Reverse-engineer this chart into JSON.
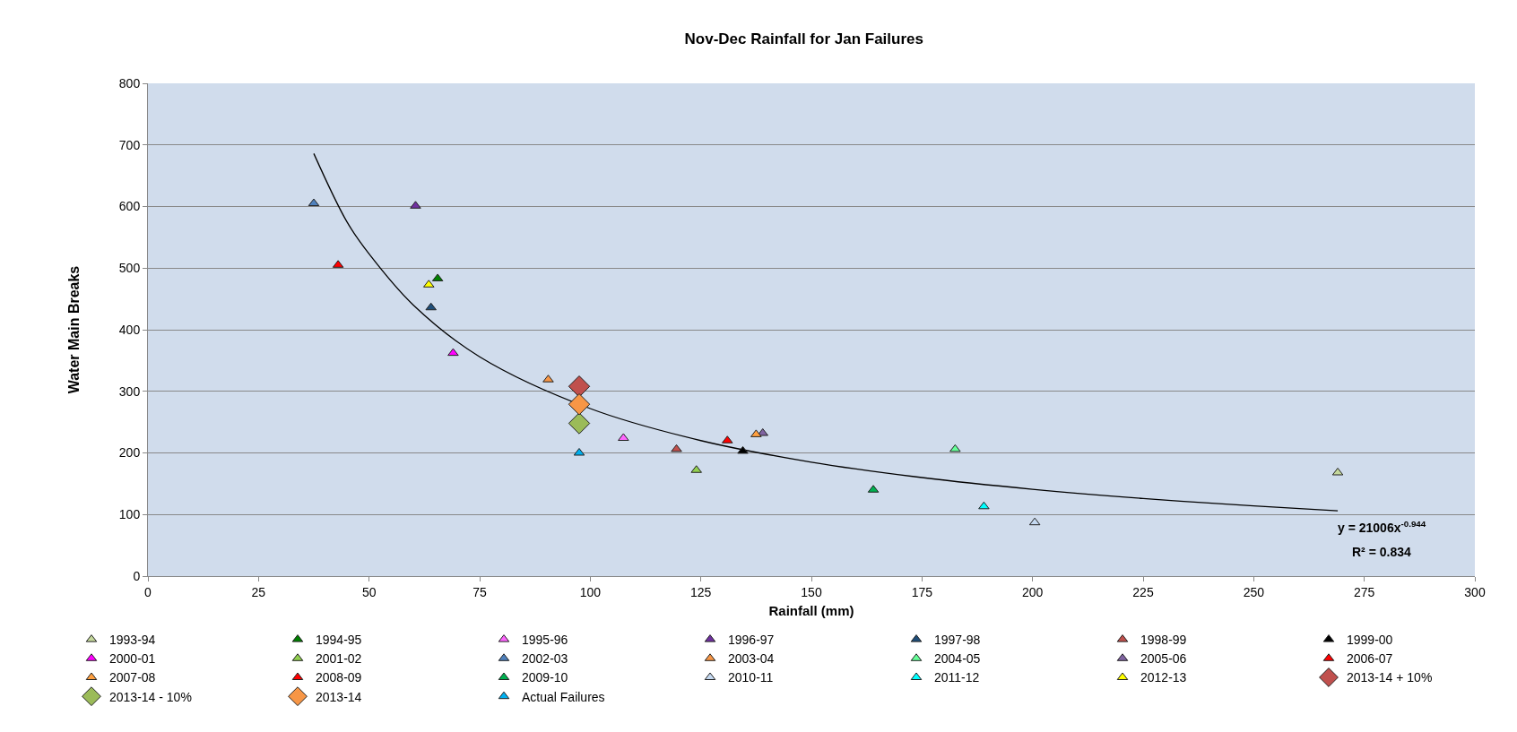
{
  "chart_data": {
    "type": "scatter",
    "title": "Nov-Dec Rainfall for Jan Failures",
    "xlabel": "Rainfall (mm)",
    "ylabel": "Water Main Breaks",
    "xlim": [
      0,
      300
    ],
    "xticks": [
      0,
      25,
      50,
      75,
      100,
      125,
      150,
      175,
      200,
      225,
      250,
      275,
      300
    ],
    "ylim": [
      0,
      800
    ],
    "yticks": [
      0,
      100,
      200,
      300,
      400,
      500,
      600,
      700,
      800
    ],
    "grid": "y",
    "legend": "bottom",
    "marker": "triangle",
    "annotations": [
      "y = 21006x$^{-0.944}$",
      "R² = 0.834"
    ],
    "series": [
      {
        "name": "1993-94",
        "color": "#c4d79b",
        "x": [
          269
        ],
        "values": [
          168
        ]
      },
      {
        "name": "1994-95",
        "color": "#008000",
        "x": [
          65.5
        ],
        "values": [
          483
        ]
      },
      {
        "name": "1995-96",
        "color": "#ff66ff",
        "x": [
          107.5
        ],
        "values": [
          224
        ]
      },
      {
        "name": "1996-97",
        "color": "#7030a0",
        "x": [
          60.5
        ],
        "values": [
          601
        ]
      },
      {
        "name": "1997-98",
        "color": "#1f4e79",
        "x": [
          64
        ],
        "values": [
          436
        ]
      },
      {
        "name": "1998-99",
        "color": "#c0504d",
        "x": [
          119.5
        ],
        "values": [
          206
        ]
      },
      {
        "name": "1999-00",
        "color": "#000000",
        "x": [
          134.5
        ],
        "values": [
          203
        ]
      },
      {
        "name": "2000-01",
        "color": "#ff00ff",
        "x": [
          69
        ],
        "values": [
          362
        ]
      },
      {
        "name": "2001-02",
        "color": "#92d050",
        "x": [
          124
        ],
        "values": [
          172
        ]
      },
      {
        "name": "2002-03",
        "color": "#4f81bd",
        "x": [
          37.5
        ],
        "values": [
          605
        ]
      },
      {
        "name": "2003-04",
        "color": "#f79646",
        "x": [
          90.5
        ],
        "values": [
          319
        ]
      },
      {
        "name": "2004-05",
        "color": "#66ff99",
        "x": [
          182.5
        ],
        "values": [
          206
        ]
      },
      {
        "name": "2005-06",
        "color": "#8064a2",
        "x": [
          139
        ],
        "values": [
          232
        ]
      },
      {
        "name": "2006-07",
        "color": "#ff0000",
        "x": [
          43
        ],
        "values": [
          505
        ]
      },
      {
        "name": "2007-08",
        "color": "#ffa040",
        "x": [
          137.5
        ],
        "values": [
          230
        ]
      },
      {
        "name": "2008-09",
        "color": "#ff0000",
        "x": [
          131
        ],
        "values": [
          220
        ]
      },
      {
        "name": "2009-10",
        "color": "#00b050",
        "x": [
          164
        ],
        "values": [
          140
        ]
      },
      {
        "name": "2010-11",
        "color": "#c5d9f1",
        "x": [
          200.5
        ],
        "values": [
          87
        ]
      },
      {
        "name": "2011-12",
        "color": "#00ffff",
        "x": [
          189
        ],
        "values": [
          113
        ]
      },
      {
        "name": "2012-13",
        "color": "#ffff00",
        "x": [
          63.5
        ],
        "values": [
          473
        ]
      },
      {
        "name": "2013-14 + 10%",
        "color": "#c0504d",
        "marker": "diamond",
        "x": [
          97.5
        ],
        "values": [
          308
        ]
      },
      {
        "name": "2013-14 - 10%",
        "color": "#9bbb59",
        "marker": "diamond",
        "x": [
          97.5
        ],
        "values": [
          248
        ]
      },
      {
        "name": "2013-14",
        "color": "#f79646",
        "marker": "diamond",
        "x": [
          97.5
        ],
        "values": [
          279
        ]
      },
      {
        "name": "Actual Failures",
        "color": "#00b0f0",
        "x": [
          97.5
        ],
        "values": [
          200
        ]
      },
      {
        "type": "line",
        "color": "#000000",
        "marker": "none",
        "x": [
          37.5,
          45,
          50,
          60,
          75,
          100,
          125,
          150,
          175,
          200,
          225,
          250,
          269
        ],
        "values": [
          686,
          575,
          523,
          440,
          356,
          272,
          220,
          185,
          160,
          141,
          126,
          114,
          106
        ]
      }
    ]
  }
}
